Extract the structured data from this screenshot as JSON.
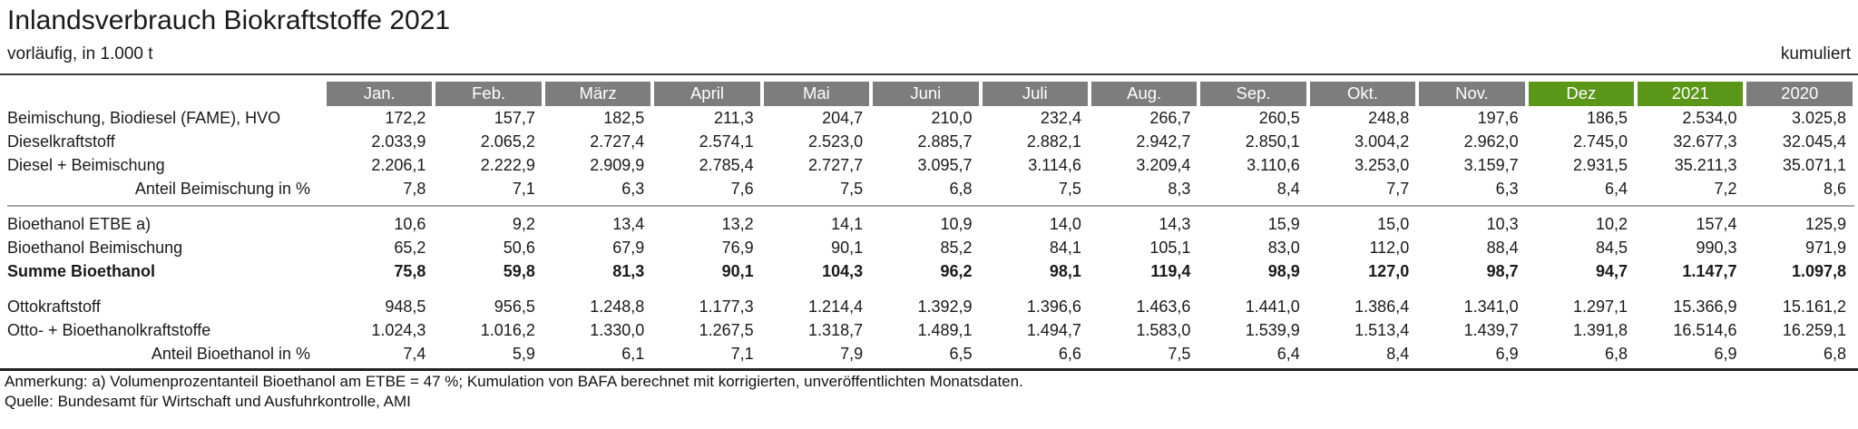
{
  "header": {
    "title": "Inlandsverbrauch Biokraftstoffe 2021",
    "subtitle": "vorläufig, in 1.000 t",
    "kumuliert_label": "kumuliert"
  },
  "chart_data": {
    "type": "table",
    "title": "Inlandsverbrauch Biokraftstoffe 2021",
    "unit": "vorläufig, in 1.000 t",
    "columns": [
      "Jan.",
      "Feb.",
      "März",
      "April",
      "Mai",
      "Juni",
      "Juli",
      "Aug.",
      "Sep.",
      "Okt.",
      "Nov.",
      "Dez",
      "2021",
      "2020"
    ],
    "highlighted_columns": [
      "Dez",
      "2021"
    ],
    "rows": [
      {
        "id": "beimischung-biodiesel",
        "label": "Beimischung, Biodiesel (FAME), HVO",
        "style": "normal",
        "values": [
          "172,2",
          "157,7",
          "182,5",
          "211,3",
          "204,7",
          "210,0",
          "232,4",
          "266,7",
          "260,5",
          "248,8",
          "197,6",
          "186,5",
          "2.534,0",
          "3.025,8"
        ]
      },
      {
        "id": "dieselkraftstoff",
        "label": "Dieselkraftstoff",
        "style": "normal",
        "values": [
          "2.033,9",
          "2.065,2",
          "2.727,4",
          "2.574,1",
          "2.523,0",
          "2.885,7",
          "2.882,1",
          "2.942,7",
          "2.850,1",
          "3.004,2",
          "2.962,0",
          "2.745,0",
          "32.677,3",
          "32.045,4"
        ]
      },
      {
        "id": "diesel-beimischung",
        "label": "Diesel + Beimischung",
        "style": "normal",
        "values": [
          "2.206,1",
          "2.222,9",
          "2.909,9",
          "2.785,4",
          "2.727,7",
          "3.095,7",
          "3.114,6",
          "3.209,4",
          "3.110,6",
          "3.253,0",
          "3.159,7",
          "2.931,5",
          "35.211,3",
          "35.071,1"
        ]
      },
      {
        "id": "anteil-beimischung",
        "label": "Anteil Beimischung in %",
        "style": "indent",
        "separator_after": "line",
        "values": [
          "7,8",
          "7,1",
          "6,3",
          "7,6",
          "7,5",
          "6,8",
          "7,5",
          "8,3",
          "8,4",
          "7,7",
          "6,3",
          "6,4",
          "7,2",
          "8,6"
        ]
      },
      {
        "id": "bioethanol-etbe",
        "label": "Bioethanol ETBE a)",
        "style": "normal",
        "values": [
          "10,6",
          "9,2",
          "13,4",
          "13,2",
          "14,1",
          "10,9",
          "14,0",
          "14,3",
          "15,9",
          "15,0",
          "10,3",
          "10,2",
          "157,4",
          "125,9"
        ]
      },
      {
        "id": "bioethanol-beimischung",
        "label": "Bioethanol Beimischung",
        "style": "normal",
        "values": [
          "65,2",
          "50,6",
          "67,9",
          "76,9",
          "90,1",
          "85,2",
          "84,1",
          "105,1",
          "83,0",
          "112,0",
          "88,4",
          "84,5",
          "990,3",
          "971,9"
        ]
      },
      {
        "id": "summe-bioethanol",
        "label": "Summe Bioethanol",
        "style": "bold",
        "separator_after": "gap",
        "values": [
          "75,8",
          "59,8",
          "81,3",
          "90,1",
          "104,3",
          "96,2",
          "98,1",
          "119,4",
          "98,9",
          "127,0",
          "98,7",
          "94,7",
          "1.147,7",
          "1.097,8"
        ]
      },
      {
        "id": "ottokraftstoff",
        "label": "Ottokraftstoff",
        "style": "normal",
        "values": [
          "948,5",
          "956,5",
          "1.248,8",
          "1.177,3",
          "1.214,4",
          "1.392,9",
          "1.396,6",
          "1.463,6",
          "1.441,0",
          "1.386,4",
          "1.341,0",
          "1.297,1",
          "15.366,9",
          "15.161,2"
        ]
      },
      {
        "id": "otto-bioethanolkraftstoffe",
        "label": "Otto- + Bioethanolkraftstoffe",
        "style": "normal",
        "values": [
          "1.024,3",
          "1.016,2",
          "1.330,0",
          "1.267,5",
          "1.318,7",
          "1.489,1",
          "1.494,7",
          "1.583,0",
          "1.539,9",
          "1.513,4",
          "1.439,7",
          "1.391,8",
          "16.514,6",
          "16.259,1"
        ]
      },
      {
        "id": "anteil-bioethanol",
        "label": "Anteil Bioethanol in %",
        "style": "indent",
        "values": [
          "7,4",
          "5,9",
          "6,1",
          "7,1",
          "7,9",
          "6,5",
          "6,6",
          "7,5",
          "6,4",
          "8,4",
          "6,9",
          "6,8",
          "6,9",
          "6,8"
        ]
      }
    ]
  },
  "footer": {
    "note": "Anmerkung: a) Volumenprozentanteil Bioethanol am ETBE = 47 %; Kumulation von BAFA berechnet mit korrigierten, unveröffentlichten Monatsdaten.",
    "source": "Quelle: Bundesamt für Wirtschaft und Ausfuhrkontrolle, AMI"
  },
  "colors": {
    "header_gray": "#7d7d7d",
    "highlight_green": "#5a9617",
    "text": "#1a1a1a"
  }
}
